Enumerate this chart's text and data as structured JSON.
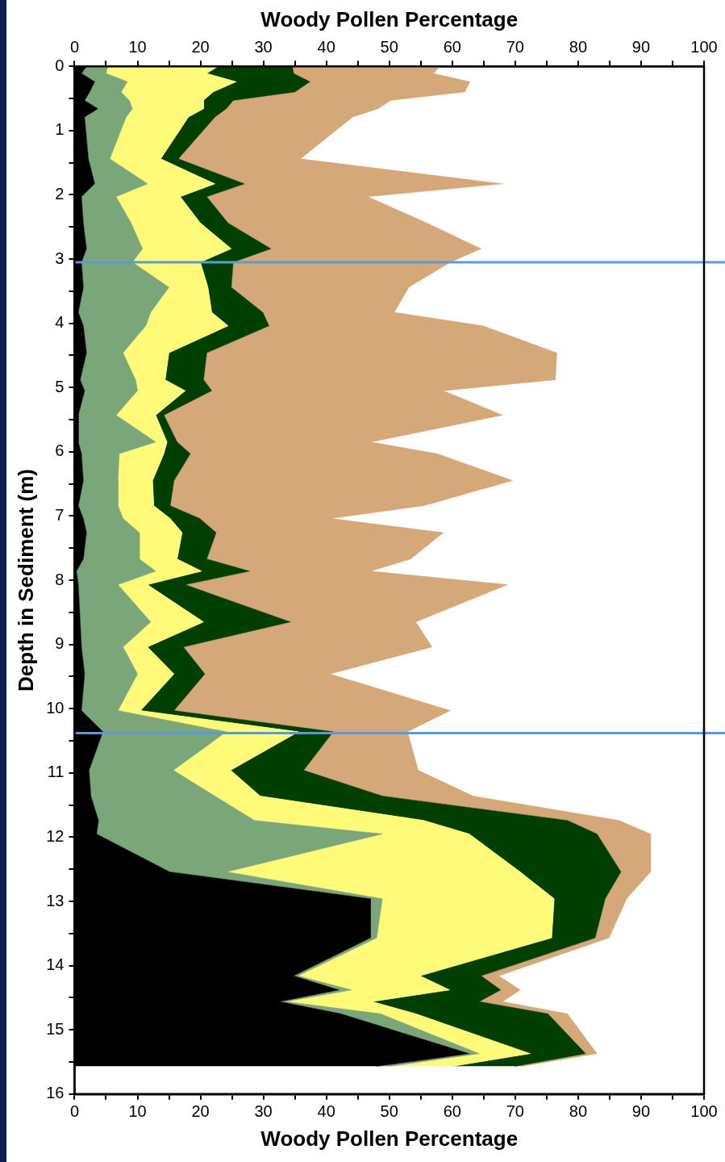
{
  "chart_data": {
    "type": "area",
    "orientation": "horizontal",
    "stacked": true,
    "xlabel": "Woody Pollen Percentage",
    "x2label": "Woody Pollen Percentage",
    "ylabel": "Depth in Sediment (m)",
    "x": [
      0,
      0.11,
      0.24,
      0.4,
      0.53,
      0.66,
      0.79,
      1.44,
      1.83,
      2.03,
      2.44,
      2.84,
      3.05,
      3.44,
      3.83,
      4.04,
      4.46,
      4.88,
      5.05,
      5.43,
      5.85,
      6.03,
      6.45,
      6.84,
      7.04,
      7.26,
      7.67,
      7.86,
      8.07,
      8.65,
      9.04,
      9.46,
      10.03,
      10.36,
      10.96,
      11.36,
      11.74,
      11.95,
      12.54,
      12.96,
      13.57,
      14.16,
      14.38,
      14.56,
      14.75,
      15.37,
      15.57
    ],
    "series": [
      {
        "color": "#000000",
        "values": [
          1.9,
          1.1,
          3.2,
          2.4,
          1.6,
          3.7,
          1.6,
          2.2,
          3.2,
          1.1,
          1.4,
          1.9,
          1.1,
          1.4,
          0.6,
          1.4,
          1.9,
          0.9,
          1.6,
          0.6,
          0.6,
          1.1,
          1.4,
          0.6,
          1.4,
          1.9,
          1.4,
          0.3,
          0.6,
          0.9,
          1.1,
          1.6,
          1.1,
          4.5,
          2.3,
          2.6,
          3.8,
          3.5,
          15.1,
          47,
          47,
          34.8,
          42,
          32.6,
          42.3,
          62.7,
          48
        ]
      },
      {
        "color": "#7aa67a",
        "values": [
          3.4,
          3.9,
          5.2,
          5,
          7.1,
          5.5,
          6.6,
          3.4,
          8.4,
          5.5,
          7.6,
          8.9,
          8.1,
          13.6,
          11.5,
          9.9,
          5.8,
          8.8,
          8.4,
          6,
          12.3,
          6,
          5.5,
          6.3,
          6.3,
          8.4,
          8.9,
          12.6,
          6.3,
          11.2,
          6.6,
          8.4,
          5.8,
          19.6,
          13.4,
          19.7,
          24.8,
          45.4,
          9.1,
          1.9,
          1,
          0.7,
          2,
          1,
          6.3,
          1.6,
          2
        ]
      },
      {
        "color": "#fffa78",
        "values": [
          17.5,
          16,
          17.3,
          14.6,
          11.8,
          11.3,
          9.9,
          8.1,
          10.7,
          10.2,
          11,
          14.1,
          10.8,
          6.2,
          9.7,
          13.1,
          7.3,
          4.7,
          7.6,
          6.3,
          1.8,
          7.1,
          5.5,
          5.7,
          7.5,
          6.8,
          6,
          7.3,
          4.7,
          8.4,
          3.9,
          5.8,
          3.6,
          11.5,
          9.1,
          7.2,
          26.9,
          13.8,
          46.6,
          27.3,
          27.8,
          19.4,
          15.6,
          13.7,
          5.6,
          8.1,
          10
        ]
      },
      {
        "color": "#003f00",
        "values": [
          11.8,
          13.8,
          11.7,
          13,
          4.7,
          3.6,
          4.2,
          2.8,
          4.7,
          4.2,
          4.4,
          6.3,
          5.2,
          3.7,
          8.1,
          6.5,
          6,
          6.1,
          4.2,
          1.3,
          1.6,
          4.2,
          3.4,
          2.6,
          4.7,
          5.4,
          4.7,
          7.6,
          6,
          13.8,
          5.7,
          4.9,
          5.3,
          5.5,
          11.6,
          19.4,
          22.8,
          20.3,
          16,
          8.1,
          6.9,
          9.7,
          8.1,
          17,
          21,
          8.8,
          10
        ]
      },
      {
        "color": "#d4a878",
        "values": [
          23.5,
          22.2,
          25.4,
          27,
          25,
          24.1,
          21.9,
          19.4,
          41,
          25.6,
          31.6,
          33.4,
          34.5,
          28.2,
          20.9,
          34,
          55.6,
          55.9,
          36.8,
          53.8,
          30.8,
          39.2,
          53.8,
          40.3,
          20.9,
          36.1,
          32.4,
          19.3,
          51.2,
          19.9,
          39.5,
          19.9,
          43.9,
          11.8,
          18.2,
          14.4,
          8.2,
          8.5,
          4.7,
          3.4,
          2.2,
          2.8,
          3.1,
          3.7,
          3.1,
          1.8,
          1
        ]
      }
    ],
    "xlim": [
      0,
      100
    ],
    "x2lim": [
      0,
      100
    ],
    "xticks": [
      0,
      {
        "value": 5,
        "label": null
      },
      10,
      {
        "value": 15,
        "label": null
      },
      20,
      {
        "value": 25,
        "label": null
      },
      30,
      {
        "value": 35,
        "label": null
      },
      40,
      {
        "value": 45,
        "label": null
      },
      50,
      {
        "value": 55,
        "label": null
      },
      60,
      {
        "value": 65,
        "label": null
      },
      70,
      {
        "value": 75,
        "label": null
      },
      80,
      {
        "value": 85,
        "label": null
      },
      90,
      {
        "value": 95,
        "label": null
      },
      100
    ],
    "x2ticks": [
      0,
      {
        "value": 5,
        "label": null
      },
      10,
      {
        "value": 15,
        "label": null
      },
      20,
      {
        "value": 25,
        "label": null
      },
      30,
      {
        "value": 35,
        "label": null
      },
      40,
      {
        "value": 45,
        "label": null
      },
      50,
      {
        "value": 55,
        "label": null
      },
      60,
      {
        "value": 65,
        "label": null
      },
      70,
      {
        "value": 75,
        "label": null
      },
      80,
      {
        "value": 85,
        "label": null
      },
      90,
      {
        "value": 95,
        "label": null
      },
      100
    ],
    "ylim": [
      16,
      0
    ],
    "yticks": [
      0,
      {
        "value": 0.5,
        "label": null
      },
      1,
      {
        "value": 1.5,
        "label": null
      },
      2,
      {
        "value": 2.5,
        "label": null
      },
      3,
      {
        "value": 3.5,
        "label": null
      },
      4,
      {
        "value": 4.5,
        "label": null
      },
      5,
      {
        "value": 5.5,
        "label": null
      },
      6,
      {
        "value": 6.5,
        "label": null
      },
      7,
      {
        "value": 7.5,
        "label": null
      },
      8,
      {
        "value": 8.5,
        "label": null
      },
      9,
      {
        "value": 9.5,
        "label": null
      },
      10,
      {
        "value": 10.5,
        "label": null
      },
      11,
      {
        "value": 11.5,
        "label": null
      },
      12,
      {
        "value": 12.5,
        "label": null
      },
      13,
      {
        "value": 13.5,
        "label": null
      },
      14,
      {
        "value": 14.5,
        "label": null
      },
      15,
      {
        "value": 15.5,
        "label": null
      },
      16
    ],
    "ref_lines": [
      {
        "axis": "y",
        "value": 3.05,
        "color": "#5b9bd5"
      },
      {
        "axis": "y",
        "value": 10.38,
        "color": "#5b9bd5"
      }
    ]
  }
}
